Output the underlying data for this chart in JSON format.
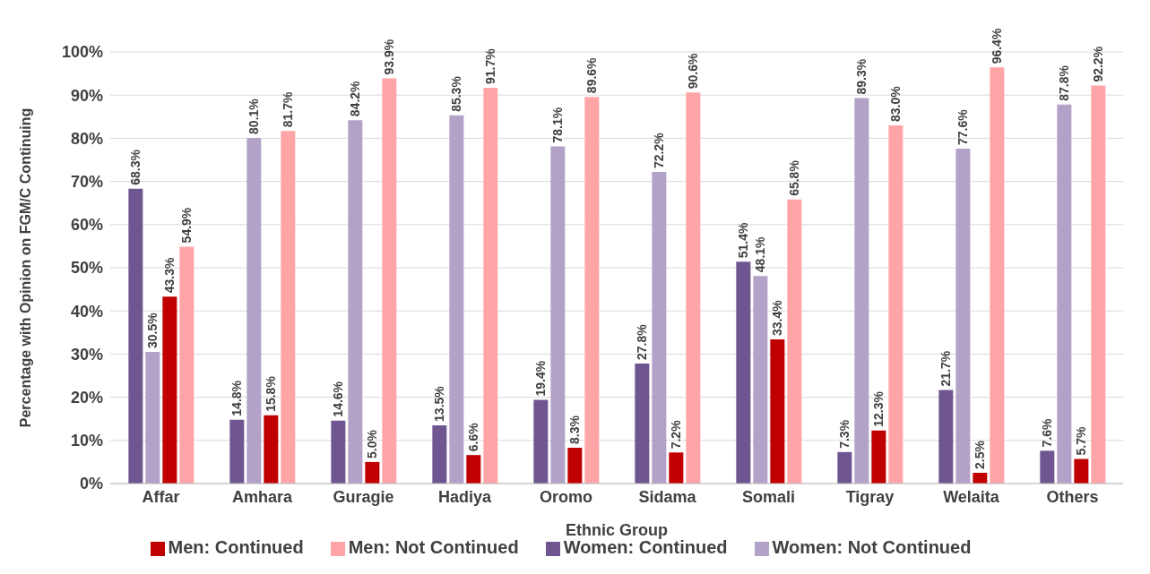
{
  "chart_data": {
    "type": "bar",
    "xlabel": "Ethnic Group",
    "ylabel": "Percentage with Opinion on FGM/C Continuing",
    "categories": [
      "Affar",
      "Amhara",
      "Guragie",
      "Hadiya",
      "Oromo",
      "Sidama",
      "Somali",
      "Tigray",
      "Welaita",
      "Others"
    ],
    "series": [
      {
        "name": "Women: Continued",
        "color": "#6f5690",
        "values": [
          68.3,
          14.8,
          14.6,
          13.5,
          19.4,
          27.8,
          51.4,
          7.3,
          21.7,
          7.6
        ],
        "value_labels": [
          "68.3%",
          "14.8%",
          "14.6%",
          "13.5%",
          "19.4%",
          "27.8%",
          "51.4%",
          "7.3%",
          "21.7%",
          "7.6%"
        ]
      },
      {
        "name": "Women: Not Continued",
        "color": "#b3a2c8",
        "values": [
          30.5,
          80.1,
          84.2,
          85.3,
          78.1,
          72.2,
          48.1,
          89.3,
          77.6,
          87.8
        ],
        "value_labels": [
          "30.5%",
          "80.1%",
          "84.2%",
          "85.3%",
          "78.1%",
          "72.2%",
          "48.1%",
          "89.3%",
          "77.6%",
          "87.8%"
        ]
      },
      {
        "name": "Men: Continued",
        "color": "#c00000",
        "values": [
          43.3,
          15.8,
          5.0,
          6.6,
          8.3,
          7.2,
          33.4,
          12.3,
          2.5,
          5.7
        ],
        "value_labels": [
          "43.3%",
          "15.8%",
          "5.0%",
          "6.6%",
          "8.3%",
          "7.2%",
          "33.4%",
          "12.3%",
          "2.5%",
          "5.7%"
        ]
      },
      {
        "name": "Men: Not Continued",
        "color": "#ffa5a8",
        "values": [
          54.9,
          81.7,
          93.9,
          91.7,
          89.6,
          90.6,
          65.8,
          83.0,
          96.4,
          92.2
        ],
        "value_labels": [
          "54.9%",
          "81.7%",
          "93.9%",
          "91.7%",
          "89.6%",
          "90.6%",
          "65.8%",
          "83.0%",
          "96.4%",
          "92.2%"
        ]
      }
    ],
    "ylim": [
      0,
      100
    ],
    "yticks": [
      {
        "value": 0,
        "label": "0%"
      },
      {
        "value": 10,
        "label": "10%"
      },
      {
        "value": 20,
        "label": "20%"
      },
      {
        "value": 30,
        "label": "30%"
      },
      {
        "value": 40,
        "label": "40%"
      },
      {
        "value": 50,
        "label": "50%"
      },
      {
        "value": 60,
        "label": "60%"
      },
      {
        "value": 70,
        "label": "70%"
      },
      {
        "value": 80,
        "label": "80%"
      },
      {
        "value": 90,
        "label": "90%"
      },
      {
        "value": 100,
        "label": "100%"
      }
    ],
    "grid": "y",
    "legend": "bottom"
  }
}
